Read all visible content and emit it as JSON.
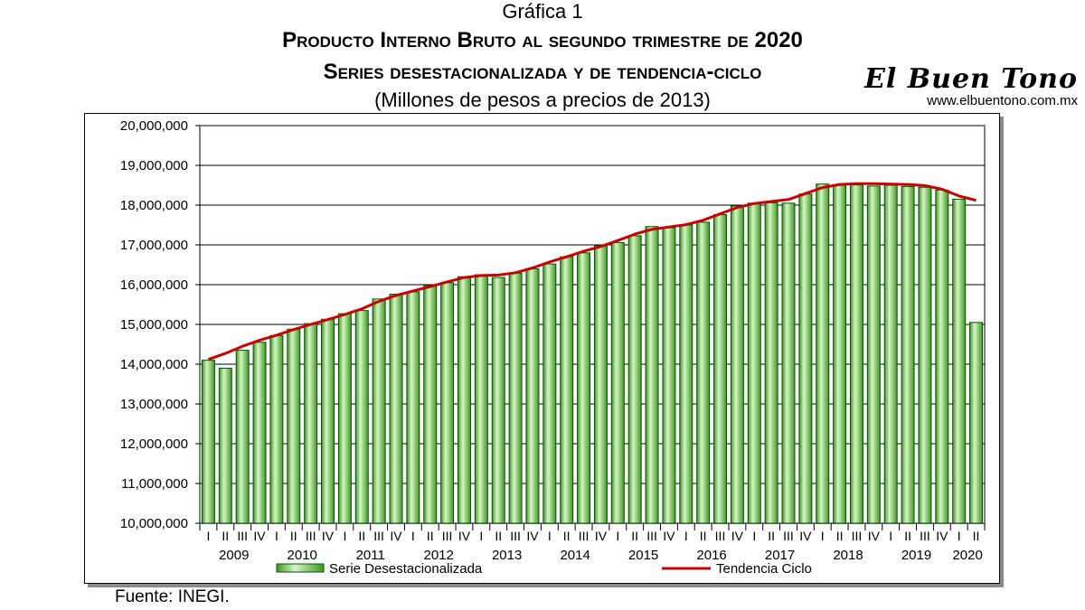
{
  "header": {
    "label": "Gráfica 1",
    "title": "Producto Interno Bruto al segundo trimestre de 2020",
    "subtitle": "Series desestacionalizada y de tendencia-ciclo",
    "units": "(Millones de pesos a precios de 2013)"
  },
  "logo": {
    "name": "El Buen Tono",
    "url": "www.elbuentono.com.mx"
  },
  "source": "Fuente: INEGI.",
  "colors": {
    "bar_fill": "#3a9a1c",
    "bar_highlight": "#d8f5c8",
    "bar_border": "#0b4f0b",
    "trend_line": "#cc0000",
    "plot_border": "#808080",
    "gridline": "#000000"
  },
  "chart_data": {
    "type": "bar",
    "y_ticks": [
      "10,000,000",
      "11,000,000",
      "12,000,000",
      "13,000,000",
      "14,000,000",
      "15,000,000",
      "16,000,000",
      "17,000,000",
      "18,000,000",
      "19,000,000",
      "20,000,000"
    ],
    "ylim": [
      10000000,
      20000000
    ],
    "y_step": 1000000,
    "grid": "horizontal",
    "legend_position": "bottom",
    "quarters": [
      "I",
      "II",
      "III",
      "IV",
      "I",
      "II",
      "III",
      "IV",
      "I",
      "II",
      "III",
      "IV",
      "I",
      "II",
      "III",
      "IV",
      "I",
      "II",
      "III",
      "IV",
      "I",
      "II",
      "III",
      "IV",
      "I",
      "II",
      "III",
      "IV",
      "I",
      "II",
      "III",
      "IV",
      "I",
      "II",
      "III",
      "IV",
      "I",
      "II",
      "III",
      "IV",
      "I",
      "II",
      "III",
      "IV",
      "I",
      "II"
    ],
    "years": [
      "2009",
      "2010",
      "2011",
      "2012",
      "2013",
      "2014",
      "2015",
      "2016",
      "2017",
      "2018",
      "2019",
      "2020"
    ],
    "series": [
      {
        "name": "Serie Desestacionalizada",
        "type": "bar",
        "values": [
          14100000,
          13900000,
          14350000,
          14550000,
          14720000,
          14880000,
          15020000,
          15130000,
          15270000,
          15350000,
          15640000,
          15760000,
          15820000,
          15980000,
          16050000,
          16200000,
          16250000,
          16180000,
          16290000,
          16400000,
          16520000,
          16700000,
          16800000,
          16980000,
          17060000,
          17230000,
          17460000,
          17430000,
          17500000,
          17570000,
          17760000,
          17980000,
          18050000,
          18060000,
          18050000,
          18280000,
          18530000,
          18500000,
          18510000,
          18480000,
          18500000,
          18470000,
          18450000,
          18380000,
          18150000,
          15050000
        ]
      },
      {
        "name": "Tendencia Ciclo",
        "type": "line",
        "values": [
          14120000,
          14270000,
          14450000,
          14600000,
          14730000,
          14870000,
          15000000,
          15120000,
          15250000,
          15390000,
          15580000,
          15730000,
          15840000,
          15950000,
          16070000,
          16180000,
          16230000,
          16240000,
          16300000,
          16420000,
          16570000,
          16700000,
          16840000,
          16960000,
          17110000,
          17270000,
          17390000,
          17450000,
          17510000,
          17620000,
          17780000,
          17940000,
          18040000,
          18090000,
          18140000,
          18290000,
          18440000,
          18520000,
          18540000,
          18540000,
          18530000,
          18520000,
          18490000,
          18400000,
          18230000,
          18120000
        ]
      }
    ]
  }
}
